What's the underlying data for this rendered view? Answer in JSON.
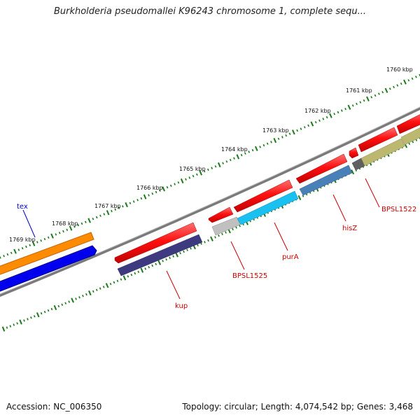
{
  "title": "Burkholderia pseudomallei K96243 chromosome 1, complete sequ...",
  "footer": {
    "accession": "Accession: NC_006350",
    "stats": "Topology: circular; Length: 4,074,542 bp; Genes: 3,468"
  },
  "scale_labels": [
    "1760 kbp",
    "1761 kbp",
    "1762 kbp",
    "1763 kbp",
    "1764 kbp",
    "1765 kbp",
    "1766 kbp",
    "1767 kbp",
    "1768 kbp",
    "1769 kbp"
  ],
  "gene_labels": [
    "tex",
    "kup",
    "BPSL1525",
    "purA",
    "hisZ",
    "BPSL1522"
  ],
  "colors": {
    "forward_red": "#ff1a1a",
    "orange": "#ff8c00",
    "blue": "#0000ee",
    "navy": "#3d3a80",
    "grey": "#c0c0c0",
    "cyan": "#19c0f0",
    "steel": "#4a80b8",
    "olive": "#bdb870",
    "darkgrey": "#606060",
    "backbone": "#808080",
    "tick": "#1a7a1a"
  }
}
